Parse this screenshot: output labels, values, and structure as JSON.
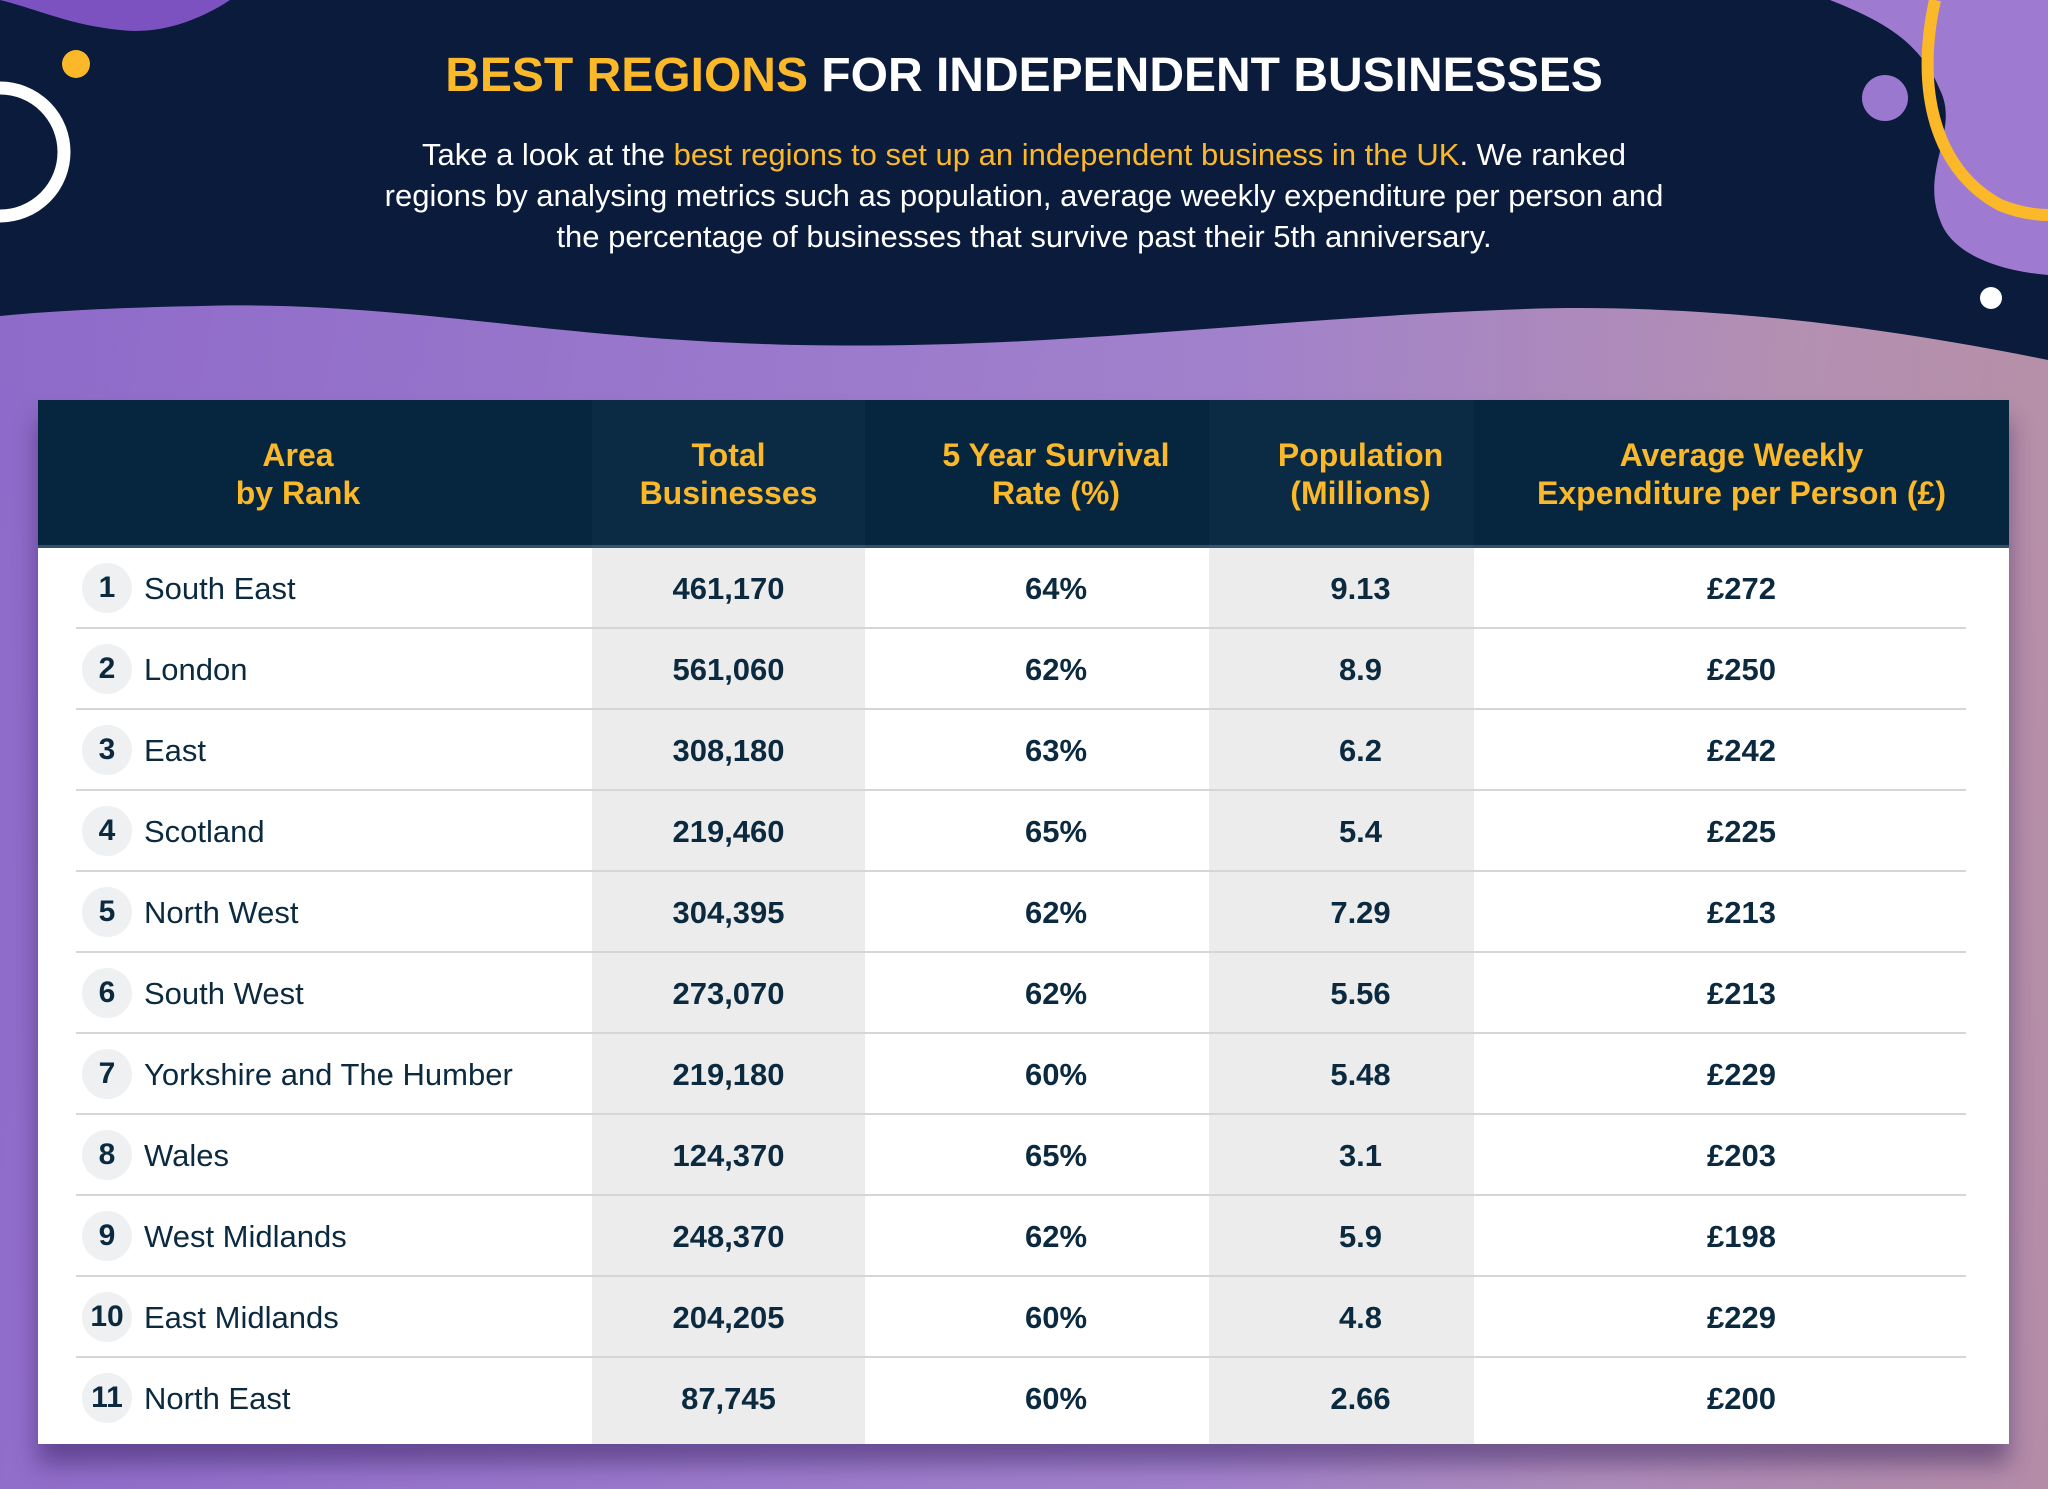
{
  "header": {
    "title_highlight": "BEST REGIONS",
    "title_rest": " FOR INDEPENDENT BUSINESSES",
    "intro_before": "Take a look at the ",
    "intro_link": "best regions to set up an independent business in the UK",
    "intro_after": ". We ranked regions by analysing metrics such as population, average weekly expenditure per person and the percentage of businesses that survive past their 5th anniversary."
  },
  "colors": {
    "navy": "#0a1a3a",
    "accent": "#fbb829",
    "purple": "#9a7ad0"
  },
  "table": {
    "columns": [
      "Area\nby Rank",
      "Total\nBusinesses",
      "5 Year Survival\nRate (%)",
      "Population\n(Millions)",
      "Average Weekly\nExpenditure per Person (£)"
    ],
    "rows": [
      {
        "rank": "1",
        "area": "South East",
        "businesses": "461,170",
        "survival": "64%",
        "population": "9.13",
        "expenditure": "£272"
      },
      {
        "rank": "2",
        "area": "London",
        "businesses": "561,060",
        "survival": "62%",
        "population": "8.9",
        "expenditure": "£250"
      },
      {
        "rank": "3",
        "area": "East",
        "businesses": "308,180",
        "survival": "63%",
        "population": "6.2",
        "expenditure": "£242"
      },
      {
        "rank": "4",
        "area": "Scotland",
        "businesses": "219,460",
        "survival": "65%",
        "population": "5.4",
        "expenditure": "£225"
      },
      {
        "rank": "5",
        "area": "North West",
        "businesses": "304,395",
        "survival": "62%",
        "population": "7.29",
        "expenditure": "£213"
      },
      {
        "rank": "6",
        "area": "South West",
        "businesses": "273,070",
        "survival": "62%",
        "population": "5.56",
        "expenditure": "£213"
      },
      {
        "rank": "7",
        "area": "Yorkshire and The Humber",
        "businesses": "219,180",
        "survival": "60%",
        "population": "5.48",
        "expenditure": "£229"
      },
      {
        "rank": "8",
        "area": "Wales",
        "businesses": "124,370",
        "survival": "65%",
        "population": "3.1",
        "expenditure": "£203"
      },
      {
        "rank": "9",
        "area": "West Midlands",
        "businesses": "248,370",
        "survival": "62%",
        "population": "5.9",
        "expenditure": "£198"
      },
      {
        "rank": "10",
        "area": "East Midlands",
        "businesses": "204,205",
        "survival": "60%",
        "population": "4.8",
        "expenditure": "£229"
      },
      {
        "rank": "11",
        "area": "North East",
        "businesses": "87,745",
        "survival": "60%",
        "population": "2.66",
        "expenditure": "£200"
      }
    ]
  }
}
